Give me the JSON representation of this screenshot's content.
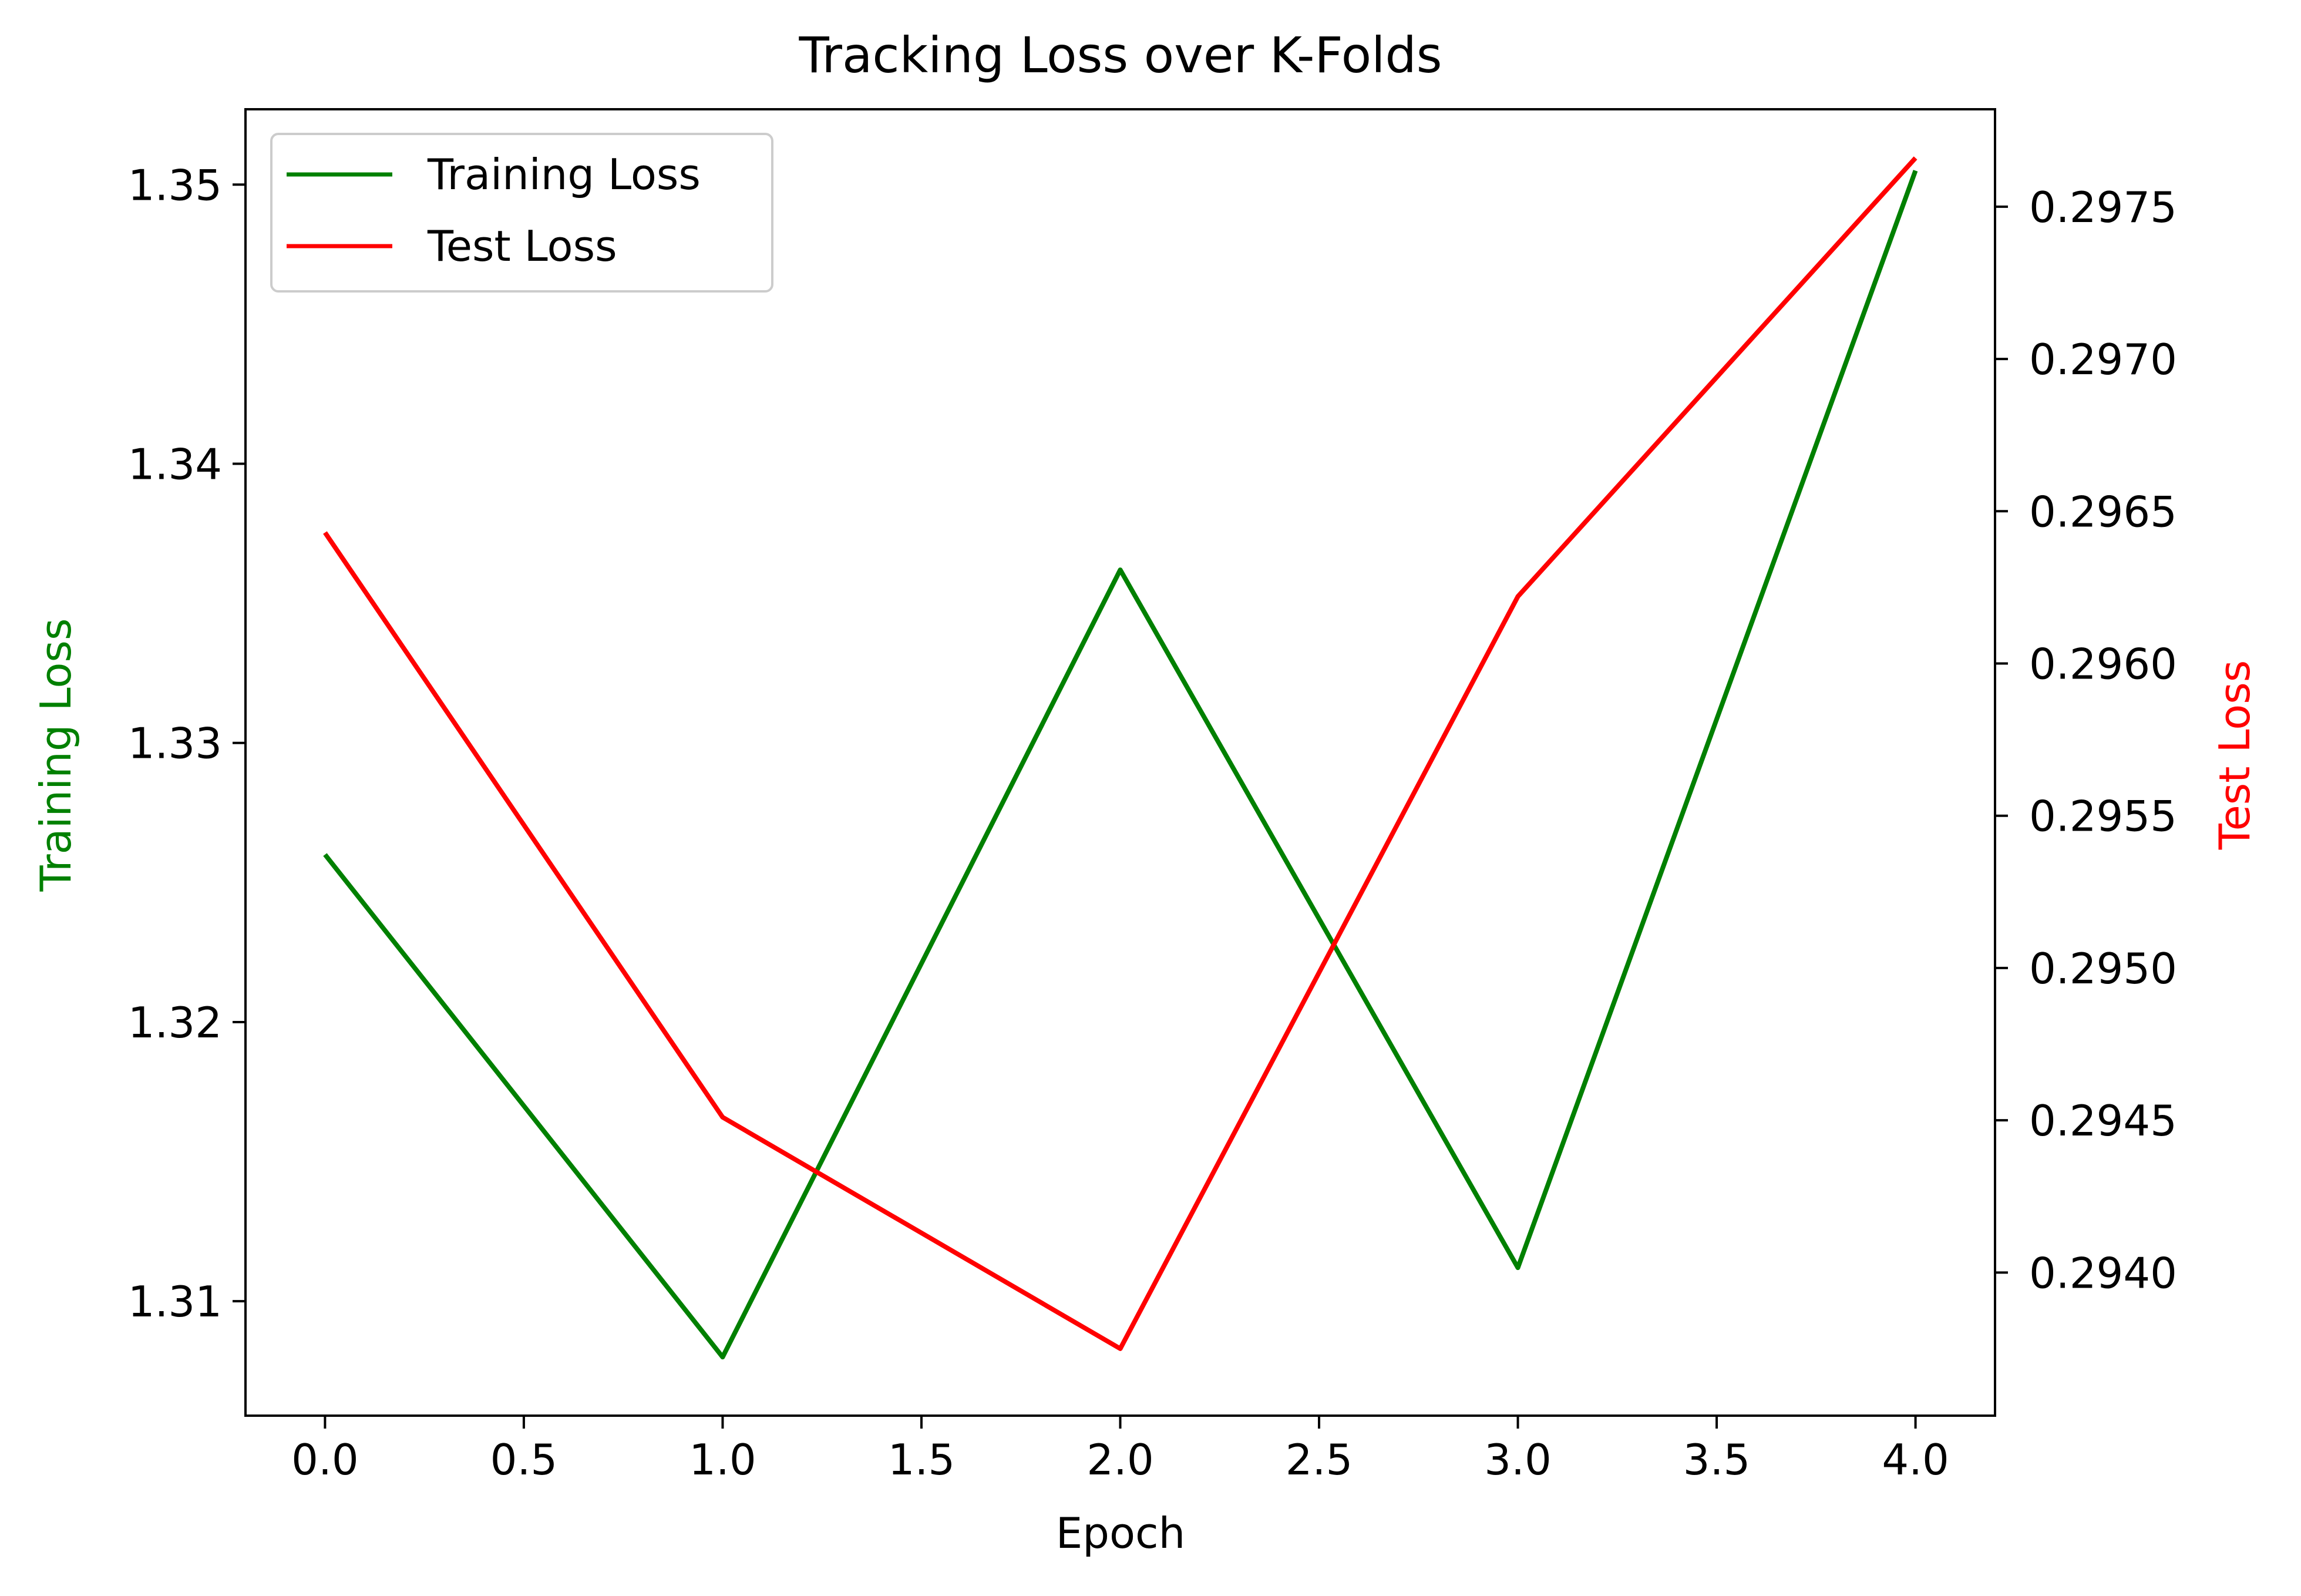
{
  "chart_data": {
    "type": "line",
    "title": "Tracking Loss over K-Folds",
    "xlabel": "Epoch",
    "ylabel_left": "Training Loss",
    "ylabel_right": "Test Loss",
    "x": [
      0,
      1,
      2,
      3,
      4
    ],
    "xlim": [
      -0.2,
      4.2
    ],
    "x_ticks": [
      "0.0",
      "0.5",
      "1.0",
      "1.5",
      "2.0",
      "2.5",
      "3.0",
      "3.5",
      "4.0"
    ],
    "x_tick_values": [
      0,
      0.5,
      1,
      1.5,
      2,
      2.5,
      3,
      3.5,
      4
    ],
    "ylim_left": [
      1.3059,
      1.3527
    ],
    "y_ticks_left": [
      "1.31",
      "1.32",
      "1.33",
      "1.34",
      "1.35"
    ],
    "y_tick_values_left": [
      1.31,
      1.32,
      1.33,
      1.34,
      1.35
    ],
    "ylim_right": [
      0.29353,
      0.29782
    ],
    "y_ticks_right": [
      "0.2940",
      "0.2945",
      "0.2950",
      "0.2955",
      "0.2960",
      "0.2965",
      "0.2970",
      "0.2975"
    ],
    "y_tick_values_right": [
      0.294,
      0.2945,
      0.295,
      0.2955,
      0.296,
      0.2965,
      0.297,
      0.2975
    ],
    "series": [
      {
        "name": "Training Loss",
        "axis": "left",
        "color": "#008000",
        "values": [
          1.326,
          1.308,
          1.3362,
          1.3112,
          1.3505
        ]
      },
      {
        "name": "Test Loss",
        "axis": "right",
        "color": "#ff0000",
        "values": [
          0.29643,
          0.29451,
          0.29375,
          0.29622,
          0.29766
        ]
      }
    ],
    "legend_position": "upper-left",
    "grid": false
  }
}
